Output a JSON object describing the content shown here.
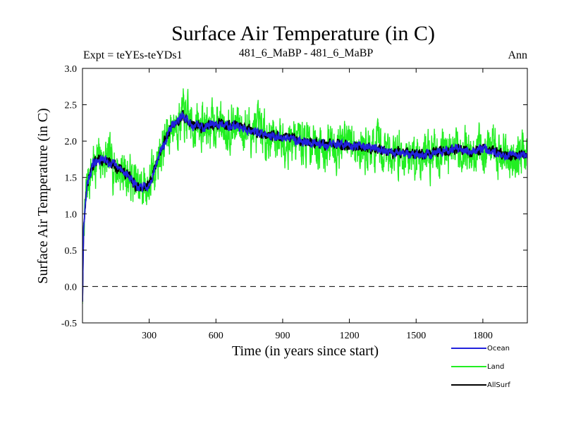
{
  "chart_data": {
    "type": "line",
    "title": "Surface Air Temperature (in C)",
    "subtitle_left": "Expt = teYEs-teYDs1",
    "subtitle_center": "481_6_MaBP - 481_6_MaBP",
    "subtitle_right": "Ann",
    "xlabel": "Time (in years since start)",
    "ylabel": "Surface Air Temperature (in C)",
    "xlim": [
      0,
      2000
    ],
    "ylim": [
      -0.5,
      3.0
    ],
    "xticks": [
      300,
      600,
      900,
      1200,
      1500,
      1800
    ],
    "xtick_labels": [
      "300",
      "600",
      "900",
      "1200",
      "1500",
      "1800"
    ],
    "yticks": [
      -0.5,
      0.0,
      0.5,
      1.0,
      1.5,
      2.0,
      2.5,
      3.0
    ],
    "ytick_labels": [
      "-0.5",
      "0.0",
      "0.5",
      "1.0",
      "1.5",
      "2.0",
      "2.5",
      "3.0"
    ],
    "reference_line": 0.0,
    "trend_x": [
      0,
      5,
      20,
      50,
      100,
      150,
      200,
      250,
      300,
      350,
      400,
      450,
      500,
      550,
      600,
      700,
      800,
      900,
      1000,
      1100,
      1200,
      1300,
      1400,
      1500,
      1600,
      1700,
      1750,
      1800,
      1900,
      2000
    ],
    "trend_y": [
      -0.2,
      0.8,
      1.4,
      1.7,
      1.75,
      1.65,
      1.55,
      1.35,
      1.4,
      1.85,
      2.2,
      2.35,
      2.2,
      2.2,
      2.25,
      2.2,
      2.1,
      2.05,
      2.0,
      1.95,
      1.95,
      1.9,
      1.85,
      1.8,
      1.85,
      1.9,
      1.85,
      1.9,
      1.8,
      1.8
    ],
    "series": [
      {
        "name": "Land",
        "color": "#22ee22",
        "noise_amplitude": 0.55,
        "seed": 7,
        "draw_order": 1
      },
      {
        "name": "AllSurf",
        "color": "#000000",
        "noise_amplitude": 0.12,
        "seed": 13,
        "draw_order": 2
      },
      {
        "name": "Ocean",
        "color": "#2222dd",
        "noise_amplitude": 0.1,
        "seed": 29,
        "draw_order": 3
      }
    ],
    "legend": {
      "placement": "bottom-right",
      "entries": [
        {
          "label": "Ocean",
          "color": "#2222dd"
        },
        {
          "label": "Land",
          "color": "#22ee22"
        },
        {
          "label": "AllSurf",
          "color": "#000000"
        }
      ]
    }
  }
}
